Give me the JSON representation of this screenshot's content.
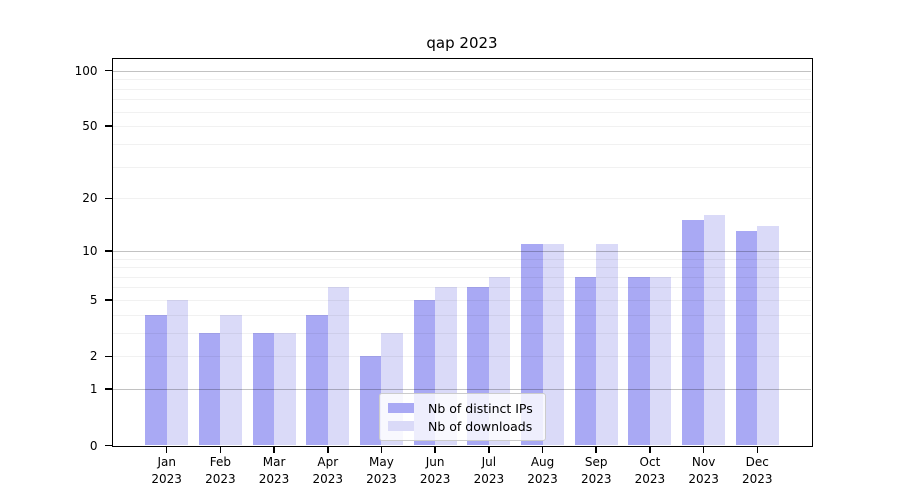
{
  "chart_data": {
    "type": "bar",
    "title": "qap 2023",
    "categories": [
      "Jan 2023",
      "Feb 2023",
      "Mar 2023",
      "Apr 2023",
      "May 2023",
      "Jun 2023",
      "Jul 2023",
      "Aug 2023",
      "Sep 2023",
      "Oct 2023",
      "Nov 2023",
      "Dec 2023"
    ],
    "x_tick_months": [
      "Jan",
      "Feb",
      "Mar",
      "Apr",
      "May",
      "Jun",
      "Jul",
      "Aug",
      "Sep",
      "Oct",
      "Nov",
      "Dec"
    ],
    "x_tick_year": "2023",
    "series": [
      {
        "name": "Nb of distinct IPs",
        "color": "#a9a9f4",
        "values": [
          4,
          3,
          3,
          4,
          2,
          5,
          6,
          11,
          7,
          7,
          15,
          13
        ]
      },
      {
        "name": "Nb of downloads",
        "color": "#dadaf8",
        "values": [
          5,
          4,
          3,
          6,
          3,
          6,
          7,
          11,
          11,
          7,
          16,
          14
        ]
      }
    ],
    "yscale": "log1p",
    "ylim": [
      0,
      100
    ],
    "y_tick_values": [
      0,
      1,
      2,
      5,
      10,
      20,
      50,
      100
    ],
    "y_tick_labels": [
      "0",
      "1",
      "2",
      "5",
      "10",
      "20",
      "50",
      "100"
    ],
    "grid_major_values": [
      1,
      10,
      100
    ],
    "grid_minor_values": [
      2,
      3,
      4,
      5,
      6,
      7,
      8,
      9,
      20,
      30,
      40,
      50,
      60,
      70,
      80,
      90
    ],
    "grid": "on",
    "legend_position": "lower center",
    "axis_color": "#000000",
    "background_color": "#ffffff"
  }
}
